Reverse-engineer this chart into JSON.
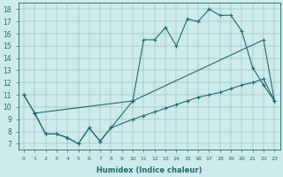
{
  "xlabel": "Humidex (Indice chaleur)",
  "xlim": [
    -0.5,
    23.5
  ],
  "ylim": [
    6.5,
    18.5
  ],
  "xticks": [
    0,
    1,
    2,
    3,
    4,
    5,
    6,
    7,
    8,
    9,
    10,
    11,
    12,
    13,
    14,
    15,
    16,
    17,
    18,
    19,
    20,
    21,
    22,
    23
  ],
  "yticks": [
    7,
    8,
    9,
    10,
    11,
    12,
    13,
    14,
    15,
    16,
    17,
    18
  ],
  "bg_color": "#ceeaea",
  "line_color": "#1e6b6b",
  "line1_x": [
    0,
    1,
    2,
    3,
    4,
    5,
    6,
    7,
    8,
    10,
    11,
    12,
    13,
    14,
    15,
    16,
    17,
    18,
    19,
    20,
    21,
    22,
    23
  ],
  "line1_y": [
    11,
    9.5,
    7.8,
    7.8,
    7.5,
    7.0,
    8.3,
    7.2,
    8.3,
    10.5,
    15.5,
    15.5,
    16.5,
    15.0,
    17.2,
    17.0,
    18.0,
    17.5,
    17.5,
    16.2,
    13.2,
    11.8,
    10.5
  ],
  "line2_x": [
    0,
    1,
    10,
    22,
    23
  ],
  "line2_y": [
    11,
    9.5,
    10.5,
    15.5,
    10.5
  ],
  "line3_x": [
    1,
    2,
    3,
    4,
    5,
    6,
    7,
    8,
    10,
    11,
    12,
    13,
    14,
    15,
    16,
    17,
    18,
    19,
    20,
    21,
    22,
    23
  ],
  "line3_y": [
    9.5,
    7.8,
    7.8,
    7.5,
    7.0,
    8.3,
    7.2,
    8.3,
    9.0,
    9.3,
    9.6,
    9.9,
    10.2,
    10.5,
    10.8,
    11.0,
    11.2,
    11.5,
    11.8,
    12.0,
    12.3,
    10.5
  ]
}
